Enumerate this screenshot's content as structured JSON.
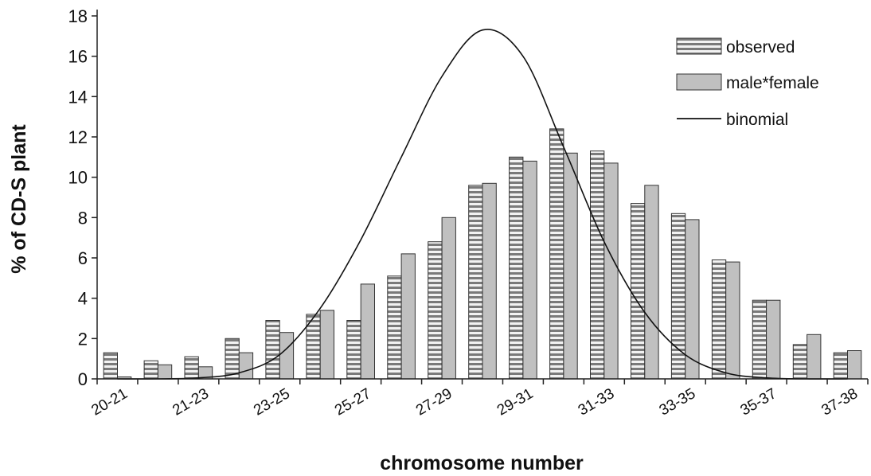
{
  "chart_data": {
    "type": "bar",
    "xlabel": "chromosome number",
    "ylabel": "% of CD-S plant",
    "ylim": [
      0,
      18
    ],
    "yticks": [
      "0",
      "2",
      "4",
      "6",
      "8",
      "10",
      "12",
      "14",
      "16",
      "18"
    ],
    "categories": [
      "20-21",
      "",
      "21-23",
      "",
      "23-25",
      "",
      "25-27",
      "",
      "27-29",
      "",
      "29-31",
      "",
      "31-33",
      "",
      "33-35",
      "",
      "35-37",
      "",
      "37-38"
    ],
    "series": [
      {
        "name": "observed",
        "kind": "bar",
        "pattern": "horizontal-stripes",
        "color": "#8c8c8c",
        "values": [
          1.3,
          0.9,
          1.1,
          2.0,
          2.9,
          3.2,
          2.9,
          5.1,
          6.8,
          9.6,
          11.0,
          12.4,
          11.3,
          8.7,
          8.2,
          5.9,
          3.9,
          1.7,
          1.3
        ]
      },
      {
        "name": "male*female",
        "kind": "bar",
        "pattern": "solid",
        "color": "#c0c0c0",
        "values": [
          0.1,
          0.7,
          0.6,
          1.3,
          2.3,
          3.4,
          4.7,
          6.2,
          8.0,
          9.7,
          10.8,
          11.2,
          10.7,
          9.6,
          7.9,
          5.8,
          3.9,
          2.2,
          1.4
        ]
      },
      {
        "name": "binomial",
        "kind": "line",
        "color": "#111111",
        "values": [
          0.0,
          0.0,
          0.05,
          0.3,
          1.2,
          3.5,
          6.9,
          11.0,
          15.0,
          17.3,
          16.0,
          11.5,
          6.8,
          3.3,
          1.2,
          0.3,
          0.05,
          0.0,
          0.0
        ]
      }
    ],
    "legend": {
      "position": "top-right",
      "items": [
        "observed",
        "male*female",
        "binomial"
      ]
    },
    "grid": false
  }
}
